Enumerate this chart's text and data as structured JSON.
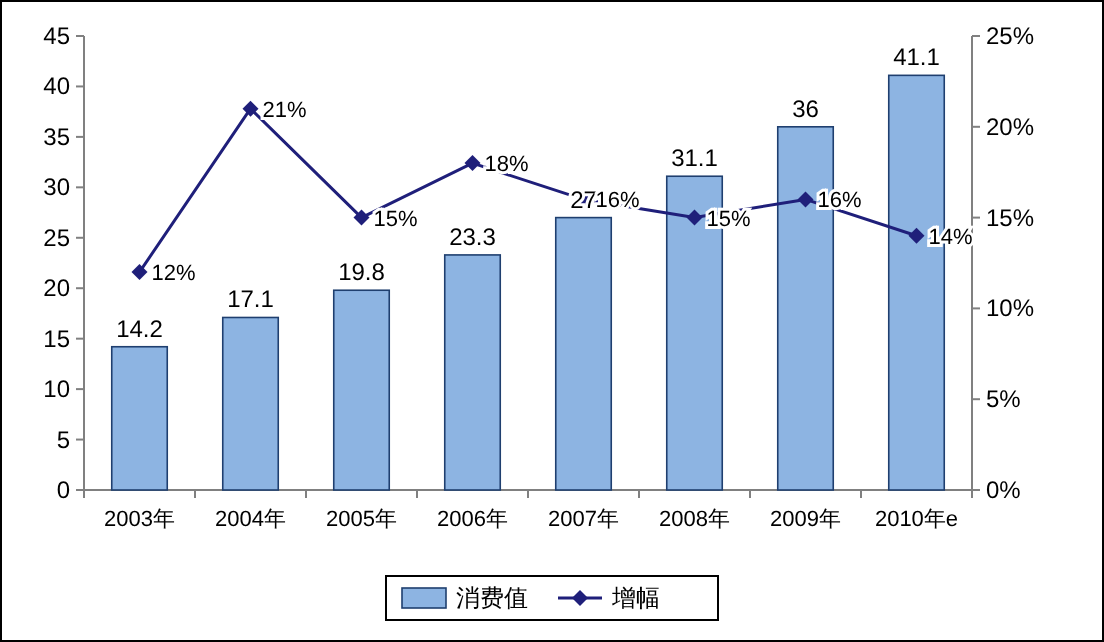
{
  "chart_data": {
    "type": "bar",
    "categories": [
      "2003年",
      "2004年",
      "2005年",
      "2006年",
      "2007年",
      "2008年",
      "2009年",
      "2010年e"
    ],
    "series": [
      {
        "name": "消费值",
        "color": "#8db4e2",
        "values": [
          14.2,
          17.1,
          19.8,
          23.3,
          27,
          31.1,
          36,
          41.1
        ],
        "value_labels": [
          "14.2",
          "17.1",
          "19.8",
          "23.3",
          "27",
          "31.1",
          "36",
          "41.1"
        ]
      },
      {
        "name": "增幅",
        "type": "line",
        "color": "#1f1f7a",
        "axis": "y2",
        "marker": "diamond",
        "values": [
          12,
          21,
          15,
          18,
          16,
          15,
          16,
          14
        ],
        "value_labels": [
          "12%",
          "21%",
          "15%",
          "18%",
          "16%",
          "15%",
          "16%",
          "14%"
        ]
      }
    ],
    "ylim": [
      0,
      45
    ],
    "yticks": [
      0,
      5,
      10,
      15,
      20,
      25,
      30,
      35,
      40,
      45
    ],
    "y2lim": [
      0,
      25
    ],
    "y2ticks": [
      {
        "value": 0,
        "label": "0%"
      },
      {
        "value": 5,
        "label": "5%"
      },
      {
        "value": 10,
        "label": "10%"
      },
      {
        "value": 15,
        "label": "15%"
      },
      {
        "value": 20,
        "label": "20%"
      },
      {
        "value": 25,
        "label": "25%"
      }
    ],
    "legend": "bottom"
  }
}
